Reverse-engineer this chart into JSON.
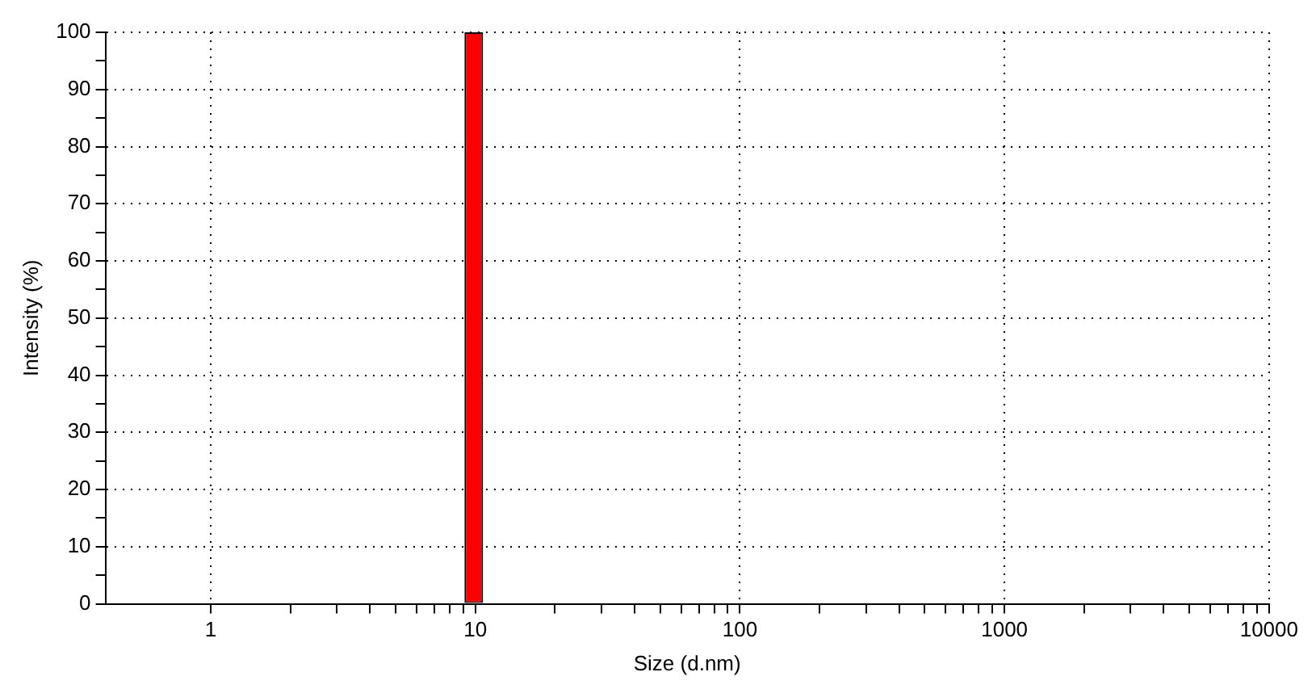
{
  "chart_data": {
    "type": "histogram",
    "xlabel": "Size (d.nm)",
    "ylabel": "Intensity (%)",
    "bins": [
      9.1,
      10.7
    ],
    "values": [
      100
    ],
    "color": "#ff0000",
    "log": "x",
    "xlim": [
      0.4,
      10000
    ],
    "xticks": [
      1,
      {
        "value": 2,
        "label": null
      },
      {
        "value": 3,
        "label": null
      },
      {
        "value": 4,
        "label": null
      },
      {
        "value": 5,
        "label": null
      },
      {
        "value": 6,
        "label": null
      },
      {
        "value": 7,
        "label": null
      },
      {
        "value": 8,
        "label": null
      },
      {
        "value": 9,
        "label": null
      },
      10,
      {
        "value": 20,
        "label": null
      },
      {
        "value": 30,
        "label": null
      },
      {
        "value": 40,
        "label": null
      },
      {
        "value": 50,
        "label": null
      },
      {
        "value": 60,
        "label": null
      },
      {
        "value": 70,
        "label": null
      },
      {
        "value": 80,
        "label": null
      },
      {
        "value": 90,
        "label": null
      },
      100,
      {
        "value": 200,
        "label": null
      },
      {
        "value": 300,
        "label": null
      },
      {
        "value": 400,
        "label": null
      },
      {
        "value": 500,
        "label": null
      },
      {
        "value": 600,
        "label": null
      },
      {
        "value": 700,
        "label": null
      },
      {
        "value": 800,
        "label": null
      },
      {
        "value": 900,
        "label": null
      },
      1000,
      {
        "value": 2000,
        "label": null
      },
      {
        "value": 3000,
        "label": null
      },
      {
        "value": 4000,
        "label": null
      },
      {
        "value": 5000,
        "label": null
      },
      {
        "value": 6000,
        "label": null
      },
      {
        "value": 7000,
        "label": null
      },
      {
        "value": 8000,
        "label": null
      },
      {
        "value": 9000,
        "label": null
      },
      10000
    ],
    "ylim": [
      0,
      100
    ],
    "yticks": [
      0,
      {
        "value": 5,
        "label": null
      },
      10,
      {
        "value": 15,
        "label": null
      },
      20,
      {
        "value": 25,
        "label": null
      },
      30,
      {
        "value": 35,
        "label": null
      },
      40,
      {
        "value": 45,
        "label": null
      },
      50,
      {
        "value": 55,
        "label": null
      },
      60,
      {
        "value": 65,
        "label": null
      },
      70,
      {
        "value": 75,
        "label": null
      },
      80,
      {
        "value": 85,
        "label": null
      },
      90,
      {
        "value": 95,
        "label": null
      },
      100
    ],
    "grid": true,
    "line_style": "dotted",
    "legend": false
  }
}
